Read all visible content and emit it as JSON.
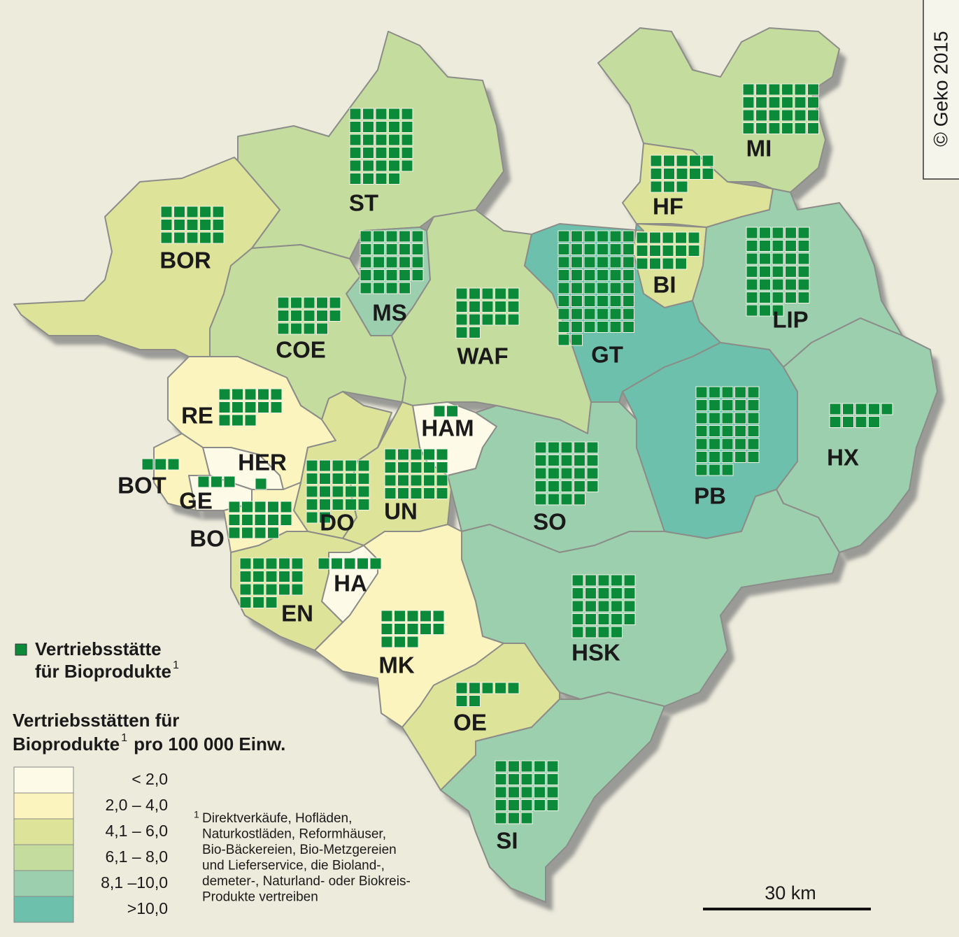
{
  "copyright": "© Geko 2015",
  "scale": "30 km",
  "districts": [
    {
      "name": "ST",
      "color": "#c5dc9f",
      "outlets": 29
    },
    {
      "name": "MI",
      "color": "#c5dc9f",
      "outlets": 24
    },
    {
      "name": "HF",
      "color": "#dde49a",
      "outlets": 13
    },
    {
      "name": "BI",
      "color": "#dde49a",
      "outlets": 14
    },
    {
      "name": "BOR",
      "color": "#dde49a",
      "outlets": 15
    },
    {
      "name": "MS",
      "color": "#9ccfae",
      "outlets": 24
    },
    {
      "name": "COE",
      "color": "#c5dc9f",
      "outlets": 14
    },
    {
      "name": "WAF",
      "color": "#c5dc9f",
      "outlets": 17
    },
    {
      "name": "GT",
      "color": "#6cc0ac",
      "outlets": 50
    },
    {
      "name": "LIP",
      "color": "#9ccfae",
      "outlets": 33
    },
    {
      "name": "RE",
      "color": "#fbf4bf",
      "outlets": 13
    },
    {
      "name": "HAM",
      "color": "#fdfbe8",
      "outlets": 2
    },
    {
      "name": "HER",
      "color": "#fdfbe8",
      "outlets": 1
    },
    {
      "name": "BOT",
      "color": "#fbf4bf",
      "outlets": 3
    },
    {
      "name": "GE",
      "color": "#fdfbe8",
      "outlets": 3
    },
    {
      "name": "DO",
      "color": "#dde49a",
      "outlets": 22
    },
    {
      "name": "UN",
      "color": "#dde49a",
      "outlets": 20
    },
    {
      "name": "BO",
      "color": "#fbf4bf",
      "outlets": 14
    },
    {
      "name": "SO",
      "color": "#9ccfae",
      "outlets": 24
    },
    {
      "name": "PB",
      "color": "#6cc0ac",
      "outlets": 33
    },
    {
      "name": "HX",
      "color": "#9ccfae",
      "outlets": 9
    },
    {
      "name": "EN",
      "color": "#dde49a",
      "outlets": 18
    },
    {
      "name": "HA",
      "color": "#fdfbe8",
      "outlets": 5
    },
    {
      "name": "HSK",
      "color": "#9ccfae",
      "outlets": 24
    },
    {
      "name": "MK",
      "color": "#fbf4bf",
      "outlets": 13
    },
    {
      "name": "OE",
      "color": "#dde49a",
      "outlets": 7
    },
    {
      "name": "SI",
      "color": "#9ccfae",
      "outlets": 23
    }
  ],
  "legend": {
    "symbol_color": "#0b8a3a",
    "symbol_lines": [
      "Vertriebsstätte",
      "für Bioprodukte"
    ],
    "symbol_sup": "1",
    "title_lines": [
      "Vertriebsstätten für",
      "Bioprodukte"
    ],
    "title_sup": "1",
    "title_end": "pro 100 000 Einw.",
    "classes": [
      {
        "label": "<  2,0",
        "color": "#fdfbe8"
      },
      {
        "label": "2,0 –  4,0",
        "color": "#fbf4bf"
      },
      {
        "label": "4,1 –  6,0",
        "color": "#dde49a"
      },
      {
        "label": "6,1 –  8,0",
        "color": "#c5dc9f"
      },
      {
        "label": "8,1 –10,0",
        "color": "#9ccfae"
      },
      {
        "label": ">10,0",
        "color": "#6cc0ac"
      }
    ]
  },
  "footnote": {
    "mark": "1",
    "lines": [
      "Direktverkäufe, Hofläden,",
      "Naturkostläden, Reformhäuser,",
      "Bio-Bäckereien, Bio-Metzgereien",
      "und Lieferservice, die Bioland-,",
      "demeter-, Naturland- oder Biokreis-",
      "Produkte vertreiben"
    ]
  }
}
